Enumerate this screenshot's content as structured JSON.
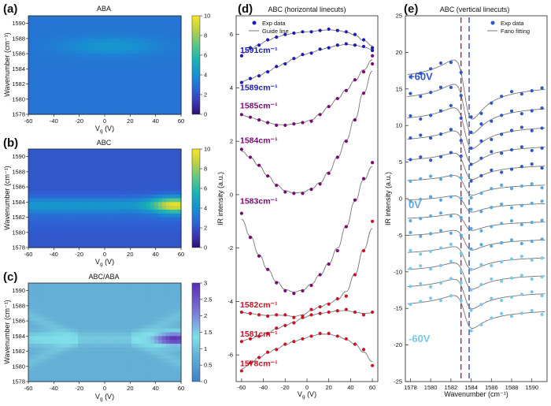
{
  "panels": {
    "a": {
      "letter": "(a)",
      "title": "ABA",
      "xlabel": "V",
      "xlabel_sub": "g",
      "xlabel_unit": " (V)",
      "ylabel": "Wavenumber (cm⁻¹)"
    },
    "b": {
      "letter": "(b)",
      "title": "ABC",
      "xlabel": "V",
      "xlabel_sub": "g",
      "xlabel_unit": " (V)",
      "ylabel": "Wavenumber (cm⁻¹)"
    },
    "c": {
      "letter": "(c)",
      "title": "ABC/ABA",
      "xlabel": "V",
      "xlabel_sub": "g",
      "xlabel_unit": " (V)",
      "ylabel": "Wavenumber (cm⁻¹)"
    },
    "d": {
      "letter": "(d)",
      "title": "ABC (horizontal linecuts)",
      "xlabel": "V",
      "xlabel_sub": "g",
      "xlabel_unit": " (V)",
      "ylabel": "IR intensity (a.u.)",
      "legend": [
        "Exp data",
        "Guide line"
      ]
    },
    "e": {
      "letter": "(e)",
      "title": "ABC (vertical linecuts)",
      "xlabel": "Wavenumber (cm⁻¹)",
      "ylabel": "IR intensity (a.u.)",
      "legend": [
        "Exp data",
        "Fano fitting"
      ]
    }
  },
  "colors": {
    "dot_d": [
      "#1c1ab8",
      "#7a0a73",
      "#c81426"
    ],
    "dot_e": [
      "#2f55c8",
      "#5ba8de",
      "#7cc8e8"
    ],
    "fit": "#777777"
  },
  "chart_data": [
    {
      "id": "a",
      "type": "heatmap",
      "title": "ABA",
      "xlabel": "Vg (V)",
      "ylabel": "Wavenumber (cm-1)",
      "x_range": [
        -60,
        60
      ],
      "y_range": [
        1578,
        1591
      ],
      "x_ticks": [
        -60,
        -40,
        -20,
        0,
        20,
        40,
        60
      ],
      "y_ticks": [
        1578,
        1580,
        1582,
        1584,
        1586,
        1588,
        1590
      ],
      "colorbar": {
        "range": [
          0,
          10
        ],
        "ticks": [
          0,
          2,
          4,
          6,
          8,
          10
        ],
        "colormap": "viridis"
      },
      "peak": {
        "center_vg": 5,
        "center_wavenumber": 1587,
        "max_value": 4.2,
        "base_value": 3.1
      }
    },
    {
      "id": "b",
      "type": "heatmap",
      "title": "ABC",
      "xlabel": "Vg (V)",
      "ylabel": "Wavenumber (cm-1)",
      "x_range": [
        -60,
        60
      ],
      "y_range": [
        1578,
        1591
      ],
      "x_ticks": [
        -60,
        -40,
        -20,
        0,
        20,
        40,
        60
      ],
      "y_ticks": [
        1578,
        1580,
        1582,
        1584,
        1586,
        1588,
        1590
      ],
      "colorbar": {
        "range": [
          0,
          10
        ],
        "ticks": [
          0,
          2,
          4,
          6,
          8,
          10
        ],
        "colormap": "viridis"
      },
      "peak": {
        "center_vg": 55,
        "center_wavenumber": 1583.6,
        "max_value": 9.5,
        "base_value": 2.2
      }
    },
    {
      "id": "c",
      "type": "heatmap",
      "title": "ABC/ABA",
      "xlabel": "Vg (V)",
      "ylabel": "Wavenumber (cm-1)",
      "x_range": [
        -60,
        60
      ],
      "y_range": [
        1578,
        1591
      ],
      "x_ticks": [
        -60,
        -40,
        -20,
        0,
        20,
        40,
        60
      ],
      "y_ticks": [
        1578,
        1580,
        1582,
        1584,
        1586,
        1588,
        1590
      ],
      "colorbar": {
        "range": [
          0,
          3
        ],
        "ticks": [
          0,
          0.5,
          1,
          1.5,
          2,
          2.5,
          3
        ],
        "colormap": "cool"
      },
      "peak": {
        "center_vg": 55,
        "center_wavenumber": 1583.6,
        "max_value": 2.7,
        "base_value": 0.75
      }
    },
    {
      "id": "d",
      "type": "scatter",
      "title": "ABC (horizontal linecuts)",
      "xlabel": "Vg (V)",
      "ylabel": "IR intensity (a.u.)",
      "x_range": [
        -65,
        65
      ],
      "y_range": [
        -7,
        6.7
      ],
      "x_ticks": [
        -60,
        -40,
        -20,
        0,
        20,
        40,
        60
      ],
      "y_ticks": [
        -6,
        -4,
        -2,
        0,
        2,
        4,
        6
      ],
      "x": [
        -60,
        -52,
        -44,
        -36,
        -28,
        -20,
        -12,
        -4,
        4,
        12,
        20,
        28,
        36,
        44,
        52,
        60
      ],
      "series": [
        {
          "name": "1591cm⁻¹",
          "color_index": 0,
          "values": [
            5.2,
            5.5,
            5.6,
            5.8,
            5.9,
            6.0,
            6.05,
            6.1,
            6.1,
            6.15,
            6.2,
            6.15,
            6.1,
            6.0,
            5.8,
            5.5
          ]
        },
        {
          "name": "1589cm⁻¹",
          "color_index": 0,
          "values": [
            4.2,
            4.35,
            4.45,
            4.6,
            4.8,
            4.9,
            5.1,
            5.25,
            5.3,
            5.45,
            5.5,
            5.6,
            5.65,
            5.6,
            5.55,
            5.4
          ]
        },
        {
          "name": "1585cm⁻¹",
          "color_index": 1,
          "values": [
            3.0,
            2.9,
            2.8,
            2.7,
            2.6,
            2.6,
            2.65,
            2.7,
            2.75,
            3.0,
            3.3,
            3.6,
            3.9,
            4.3,
            4.6,
            5.2
          ]
        },
        {
          "name": "1584cm⁻¹",
          "color_index": 1,
          "values": [
            1.7,
            1.4,
            1.1,
            0.7,
            0.35,
            0.1,
            0.05,
            0.05,
            0.2,
            0.4,
            0.8,
            1.4,
            2.0,
            2.8,
            3.8,
            4.9
          ]
        },
        {
          "name": "1583cm⁻¹",
          "color_index": 1,
          "values": [
            -0.7,
            -1.6,
            -2.3,
            -2.8,
            -3.3,
            -3.6,
            -3.7,
            -3.6,
            -3.4,
            -3.0,
            -2.6,
            -2.1,
            -1.2,
            -0.2,
            0.6,
            1.2
          ]
        },
        {
          "name": "1582cm⁻¹",
          "color_index": 2,
          "values": [
            -4.4,
            -4.45,
            -4.5,
            -4.55,
            -4.5,
            -4.5,
            -4.6,
            -4.55,
            -4.3,
            -4.2,
            -4.1,
            -3.9,
            -3.8,
            -3.0,
            -2.1,
            -1.0
          ]
        },
        {
          "name": "1581cm⁻¹",
          "color_index": 2,
          "values": [
            -5.5,
            -5.4,
            -5.3,
            -5.2,
            -5.0,
            -4.9,
            -4.8,
            -4.6,
            -4.5,
            -4.45,
            -4.4,
            -4.35,
            -4.3,
            -4.4,
            -4.5,
            -4.4
          ]
        },
        {
          "name": "1578cm⁻¹",
          "color_index": 2,
          "values": [
            -6.6,
            -6.3,
            -6.1,
            -5.9,
            -5.8,
            -5.6,
            -5.5,
            -5.4,
            -5.3,
            -5.2,
            -5.2,
            -5.3,
            -5.4,
            -5.6,
            -5.8,
            -6.4
          ]
        }
      ]
    },
    {
      "id": "e",
      "type": "scatter",
      "title": "ABC (vertical linecuts)",
      "xlabel": "Wavenumber (cm-1)",
      "ylabel": "IR intensity (a.u.)",
      "x_range": [
        1577.5,
        1591.5
      ],
      "y_range": [
        -25,
        25
      ],
      "x_ticks": [
        1578,
        1580,
        1582,
        1584,
        1586,
        1588,
        1590
      ],
      "y_ticks": [
        -25,
        -20,
        -15,
        -10,
        -5,
        0,
        5,
        10,
        15,
        20,
        25
      ],
      "x": [
        1578,
        1579,
        1580,
        1581,
        1582,
        1583,
        1584,
        1585,
        1586,
        1587,
        1588,
        1589,
        1590,
        1591
      ],
      "gate_voltages": [
        60,
        50,
        40,
        30,
        20,
        10,
        0,
        -10,
        -20,
        -30,
        -40,
        -50,
        -60
      ],
      "offsets": [
        14,
        11.5,
        9,
        6.5,
        4,
        1.5,
        -1,
        -3.5,
        -6,
        -8.5,
        -11,
        -13.5,
        -16
      ],
      "peak_heights": [
        9,
        7.5,
        6.2,
        5,
        4,
        3,
        2.5,
        2.5,
        3,
        3.5,
        4,
        4.5,
        5
      ],
      "peak_center": 1583.4,
      "dashed_lines": [
        {
          "x": 1583.0,
          "color": "#a0183c"
        },
        {
          "x": 1583.8,
          "color": "#2a3fa0"
        }
      ],
      "annotations": [
        "+60V",
        "0V",
        "-60V"
      ]
    }
  ]
}
